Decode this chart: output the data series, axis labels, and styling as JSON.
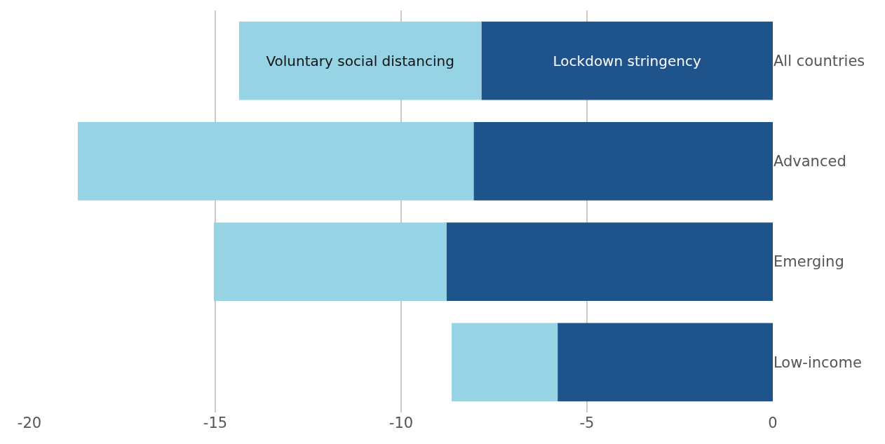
{
  "chart_data": {
    "type": "bar",
    "orientation": "horizontal",
    "stacked": true,
    "categories": [
      "All countries",
      "Advanced",
      "Emerging",
      "Low-income"
    ],
    "series": [
      {
        "name": "Lockdown stringency",
        "color": "#1f538b",
        "values": [
          -7.84,
          -8.05,
          -8.78,
          -5.79
        ]
      },
      {
        "name": "Voluntary social distancing",
        "color": "#96d3e5",
        "values": [
          -6.52,
          -10.65,
          -6.26,
          -2.85
        ]
      }
    ],
    "xlim": [
      -20,
      0
    ],
    "xticks": [
      -20,
      -15,
      -10,
      -5,
      0
    ],
    "grid": "x",
    "legend": false
  }
}
